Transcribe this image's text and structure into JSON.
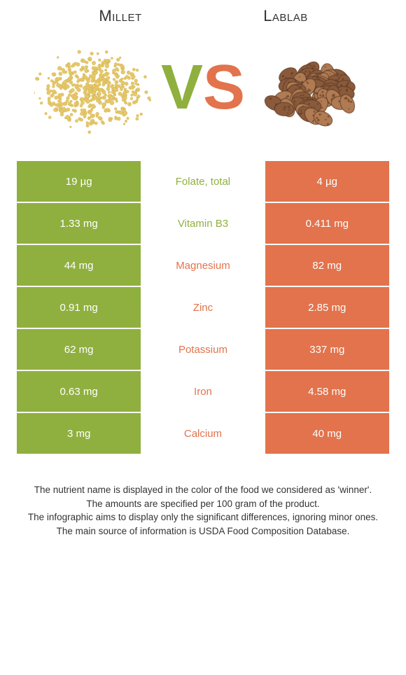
{
  "titles": {
    "left": "Millet",
    "right": "Lablab"
  },
  "vs": {
    "v": "V",
    "s": "S"
  },
  "colors": {
    "left_bg": "#8fb03e",
    "right_bg": "#e2734c",
    "mid_left_text": "#8fb03e",
    "mid_right_text": "#e2734c",
    "millet_grain": "#e6c96b",
    "millet_stroke": "#c9a53f",
    "bean_fill1": "#b07a52",
    "bean_fill2": "#8a5a3a",
    "bean_speckle": "#5a3a24"
  },
  "rows": [
    {
      "left": "19 µg",
      "mid": "Folate, total",
      "right": "4 µg",
      "winner": "left"
    },
    {
      "left": "1.33 mg",
      "mid": "Vitamin B3",
      "right": "0.411 mg",
      "winner": "left"
    },
    {
      "left": "44 mg",
      "mid": "Magnesium",
      "right": "82 mg",
      "winner": "right"
    },
    {
      "left": "0.91 mg",
      "mid": "Zinc",
      "right": "2.85 mg",
      "winner": "right"
    },
    {
      "left": "62 mg",
      "mid": "Potassium",
      "right": "337 mg",
      "winner": "right"
    },
    {
      "left": "0.63 mg",
      "mid": "Iron",
      "right": "4.58 mg",
      "winner": "right"
    },
    {
      "left": "3 mg",
      "mid": "Calcium",
      "right": "40 mg",
      "winner": "right"
    }
  ],
  "footer": {
    "l1": "The nutrient name is displayed in the color of the food we considered as 'winner'.",
    "l2": "The amounts are specified per 100 gram of the product.",
    "l3": "The infographic aims to display only the significant differences, ignoring minor ones.",
    "l4": "The main source of information is USDA Food Composition Database."
  }
}
